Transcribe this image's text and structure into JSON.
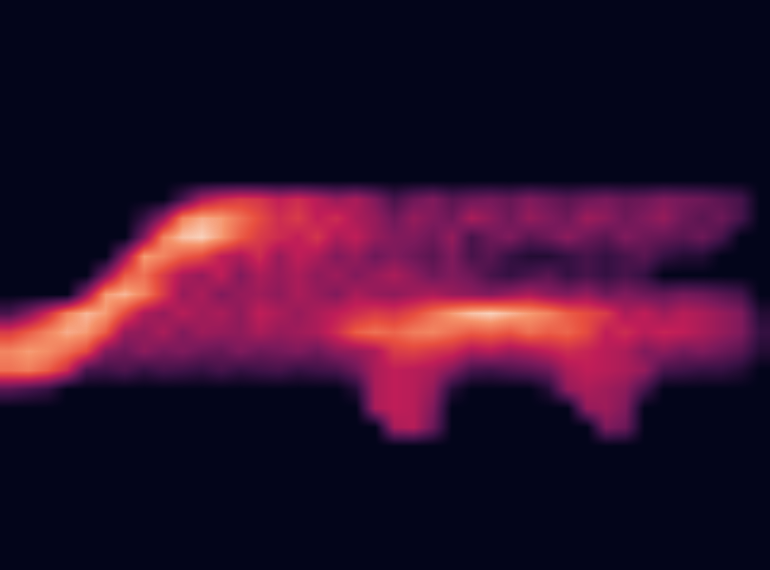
{
  "chart_data": {
    "type": "heatmap",
    "tick_labels": false,
    "zlim": [
      0,
      100
    ],
    "cells": [
      [
        0,
        0,
        0,
        0,
        0,
        0,
        0,
        0,
        0,
        0,
        0,
        0,
        0,
        0,
        0,
        0,
        0,
        0,
        0,
        0,
        0,
        0,
        0,
        0,
        0,
        0,
        0,
        0,
        0,
        0,
        0,
        0,
        0,
        0,
        0,
        0,
        0,
        0,
        0,
        0
      ],
      [
        0,
        0,
        0,
        0,
        0,
        0,
        0,
        0,
        0,
        0,
        0,
        0,
        0,
        0,
        0,
        0,
        0,
        0,
        0,
        0,
        0,
        0,
        0,
        0,
        0,
        0,
        0,
        0,
        0,
        0,
        0,
        0,
        0,
        0,
        0,
        0,
        0,
        0,
        0,
        0
      ],
      [
        0,
        0,
        0,
        0,
        0,
        0,
        0,
        0,
        0,
        0,
        0,
        0,
        0,
        0,
        0,
        0,
        0,
        0,
        0,
        0,
        0,
        0,
        0,
        0,
        0,
        0,
        0,
        0,
        0,
        0,
        0,
        0,
        0,
        0,
        0,
        0,
        0,
        0,
        0,
        0
      ],
      [
        0,
        0,
        0,
        0,
        0,
        0,
        0,
        0,
        0,
        0,
        0,
        0,
        0,
        0,
        0,
        0,
        0,
        0,
        0,
        0,
        0,
        0,
        0,
        0,
        0,
        0,
        0,
        0,
        0,
        0,
        0,
        0,
        0,
        0,
        0,
        0,
        0,
        0,
        0,
        0
      ],
      [
        0,
        0,
        0,
        0,
        0,
        0,
        0,
        0,
        0,
        0,
        0,
        0,
        0,
        0,
        0,
        0,
        0,
        0,
        0,
        0,
        0,
        0,
        0,
        0,
        0,
        0,
        0,
        0,
        0,
        0,
        0,
        0,
        0,
        0,
        0,
        0,
        0,
        0,
        0,
        0
      ],
      [
        0,
        0,
        0,
        0,
        0,
        0,
        0,
        0,
        0,
        0,
        0,
        0,
        0,
        0,
        0,
        0,
        0,
        0,
        0,
        0,
        0,
        0,
        0,
        0,
        0,
        0,
        0,
        0,
        0,
        0,
        0,
        0,
        0,
        0,
        0,
        0,
        0,
        0,
        0,
        0
      ],
      [
        0,
        0,
        0,
        0,
        0,
        0,
        0,
        0,
        0,
        0,
        0,
        0,
        0,
        0,
        0,
        0,
        0,
        0,
        0,
        0,
        0,
        0,
        0,
        0,
        0,
        0,
        0,
        0,
        0,
        0,
        0,
        0,
        0,
        0,
        0,
        0,
        0,
        0,
        0,
        0
      ],
      [
        0,
        0,
        0,
        0,
        0,
        0,
        0,
        0,
        0,
        0,
        0,
        0,
        0,
        0,
        0,
        0,
        0,
        0,
        0,
        0,
        0,
        0,
        0,
        0,
        0,
        0,
        0,
        0,
        0,
        0,
        0,
        0,
        0,
        0,
        0,
        0,
        0,
        0,
        0,
        0
      ],
      [
        0,
        0,
        0,
        0,
        0,
        0,
        0,
        0,
        0,
        0,
        0,
        0,
        0,
        0,
        0,
        0,
        0,
        0,
        0,
        0,
        0,
        0,
        0,
        0,
        0,
        0,
        0,
        0,
        0,
        0,
        0,
        0,
        0,
        0,
        0,
        0,
        0,
        0,
        0,
        0
      ],
      [
        0,
        0,
        0,
        0,
        0,
        0,
        0,
        0,
        0,
        0,
        0,
        0,
        0,
        0,
        0,
        0,
        0,
        0,
        0,
        0,
        0,
        0,
        0,
        0,
        0,
        0,
        0,
        0,
        0,
        0,
        0,
        0,
        0,
        0,
        0,
        0,
        0,
        0,
        0,
        0
      ],
      [
        0,
        0,
        0,
        0,
        0,
        0,
        0,
        0,
        0,
        20,
        45,
        55,
        60,
        58,
        50,
        55,
        48,
        40,
        45,
        35,
        20,
        30,
        35,
        25,
        30,
        32,
        28,
        35,
        30,
        25,
        30,
        33,
        28,
        30,
        35,
        32,
        30,
        25,
        20,
        0
      ],
      [
        0,
        0,
        0,
        0,
        0,
        0,
        0,
        15,
        40,
        80,
        88,
        85,
        75,
        65,
        55,
        60,
        50,
        55,
        45,
        40,
        30,
        40,
        35,
        30,
        45,
        38,
        30,
        40,
        35,
        30,
        42,
        38,
        30,
        35,
        40,
        30,
        25,
        30,
        20,
        0
      ],
      [
        0,
        0,
        0,
        0,
        0,
        0,
        0,
        35,
        80,
        92,
        95,
        85,
        70,
        60,
        55,
        50,
        58,
        45,
        50,
        40,
        35,
        35,
        30,
        40,
        20,
        30,
        35,
        25,
        30,
        38,
        30,
        25,
        35,
        30,
        28,
        25,
        30,
        20,
        0,
        0
      ],
      [
        0,
        0,
        0,
        0,
        0,
        0,
        40,
        85,
        80,
        70,
        65,
        50,
        45,
        55,
        40,
        50,
        45,
        35,
        40,
        30,
        35,
        30,
        25,
        35,
        20,
        25,
        15,
        10,
        10,
        15,
        20,
        15,
        20,
        25,
        15,
        10,
        10,
        0,
        0,
        0
      ],
      [
        0,
        0,
        0,
        0,
        0,
        35,
        70,
        75,
        60,
        45,
        40,
        50,
        35,
        45,
        40,
        45,
        38,
        42,
        35,
        40,
        45,
        38,
        30,
        35,
        30,
        20,
        15,
        20,
        25,
        15,
        20,
        15,
        20,
        15,
        0,
        0,
        0,
        0,
        0,
        0
      ],
      [
        0,
        0,
        0,
        0,
        40,
        85,
        90,
        80,
        60,
        40,
        45,
        35,
        40,
        42,
        38,
        45,
        40,
        35,
        45,
        40,
        38,
        42,
        45,
        40,
        38,
        35,
        40,
        45,
        38,
        35,
        40,
        30,
        35,
        30,
        28,
        32,
        30,
        25,
        20,
        0
      ],
      [
        20,
        35,
        55,
        80,
        90,
        85,
        65,
        45,
        40,
        48,
        42,
        45,
        38,
        50,
        45,
        40,
        45,
        50,
        55,
        60,
        58,
        65,
        75,
        85,
        92,
        95,
        90,
        85,
        80,
        70,
        65,
        60,
        45,
        50,
        42,
        48,
        45,
        40,
        35,
        10
      ],
      [
        60,
        70,
        80,
        88,
        85,
        70,
        40,
        38,
        45,
        35,
        42,
        40,
        38,
        45,
        40,
        42,
        45,
        55,
        70,
        75,
        72,
        78,
        80,
        75,
        70,
        72,
        68,
        75,
        70,
        72,
        65,
        50,
        55,
        48,
        52,
        50,
        45,
        40,
        35,
        15
      ],
      [
        80,
        85,
        82,
        75,
        65,
        35,
        30,
        38,
        32,
        35,
        30,
        28,
        35,
        30,
        32,
        35,
        30,
        38,
        40,
        45,
        60,
        62,
        58,
        55,
        45,
        48,
        42,
        45,
        50,
        55,
        52,
        48,
        45,
        35,
        38,
        32,
        35,
        30,
        25,
        10
      ],
      [
        75,
        78,
        70,
        55,
        20,
        18,
        22,
        15,
        20,
        18,
        15,
        20,
        15,
        18,
        20,
        15,
        18,
        20,
        30,
        45,
        50,
        48,
        45,
        35,
        20,
        18,
        22,
        25,
        30,
        45,
        50,
        48,
        45,
        40,
        20,
        18,
        15,
        15,
        10,
        0
      ],
      [
        25,
        20,
        15,
        0,
        0,
        0,
        0,
        0,
        0,
        0,
        0,
        0,
        0,
        0,
        0,
        0,
        0,
        0,
        10,
        45,
        50,
        48,
        40,
        10,
        0,
        0,
        0,
        0,
        10,
        40,
        45,
        42,
        38,
        20,
        0,
        0,
        0,
        0,
        0,
        0
      ],
      [
        0,
        0,
        0,
        0,
        0,
        0,
        0,
        0,
        0,
        0,
        0,
        0,
        0,
        0,
        0,
        0,
        0,
        0,
        0,
        45,
        50,
        48,
        35,
        0,
        0,
        0,
        0,
        0,
        0,
        0,
        40,
        42,
        35,
        0,
        0,
        0,
        0,
        0,
        0,
        0
      ],
      [
        0,
        0,
        0,
        0,
        0,
        0,
        0,
        0,
        0,
        0,
        0,
        0,
        0,
        0,
        0,
        0,
        0,
        0,
        0,
        0,
        45,
        48,
        30,
        0,
        0,
        0,
        0,
        0,
        0,
        0,
        0,
        35,
        30,
        0,
        0,
        0,
        0,
        0,
        0,
        0
      ],
      [
        0,
        0,
        0,
        0,
        0,
        0,
        0,
        0,
        0,
        0,
        0,
        0,
        0,
        0,
        0,
        0,
        0,
        0,
        0,
        0,
        0,
        0,
        0,
        0,
        0,
        0,
        0,
        0,
        0,
        0,
        0,
        0,
        0,
        0,
        0,
        0,
        0,
        0,
        0,
        0
      ],
      [
        0,
        0,
        0,
        0,
        0,
        0,
        0,
        0,
        0,
        0,
        0,
        0,
        0,
        0,
        0,
        0,
        0,
        0,
        0,
        0,
        0,
        0,
        0,
        0,
        0,
        0,
        0,
        0,
        0,
        0,
        0,
        0,
        0,
        0,
        0,
        0,
        0,
        0,
        0,
        0
      ],
      [
        0,
        0,
        0,
        0,
        0,
        0,
        0,
        0,
        0,
        0,
        0,
        0,
        0,
        0,
        0,
        0,
        0,
        0,
        0,
        0,
        0,
        0,
        0,
        0,
        0,
        0,
        0,
        0,
        0,
        0,
        0,
        0,
        0,
        0,
        0,
        0,
        0,
        0,
        0,
        0
      ],
      [
        0,
        0,
        0,
        0,
        0,
        0,
        0,
        0,
        0,
        0,
        0,
        0,
        0,
        0,
        0,
        0,
        0,
        0,
        0,
        0,
        0,
        0,
        0,
        0,
        0,
        0,
        0,
        0,
        0,
        0,
        0,
        0,
        0,
        0,
        0,
        0,
        0,
        0,
        0,
        0
      ],
      [
        0,
        0,
        0,
        0,
        0,
        0,
        0,
        0,
        0,
        0,
        0,
        0,
        0,
        0,
        0,
        0,
        0,
        0,
        0,
        0,
        0,
        0,
        0,
        0,
        0,
        0,
        0,
        0,
        0,
        0,
        0,
        0,
        0,
        0,
        0,
        0,
        0,
        0,
        0,
        0
      ],
      [
        0,
        0,
        0,
        0,
        0,
        0,
        0,
        0,
        0,
        0,
        0,
        0,
        0,
        0,
        0,
        0,
        0,
        0,
        0,
        0,
        0,
        0,
        0,
        0,
        0,
        0,
        0,
        0,
        0,
        0,
        0,
        0,
        0,
        0,
        0,
        0,
        0,
        0,
        0,
        0
      ],
      [
        0,
        0,
        0,
        0,
        0,
        0,
        0,
        0,
        0,
        0,
        0,
        0,
        0,
        0,
        0,
        0,
        0,
        0,
        0,
        0,
        0,
        0,
        0,
        0,
        0,
        0,
        0,
        0,
        0,
        0,
        0,
        0,
        0,
        0,
        0,
        0,
        0,
        0,
        0,
        0
      ]
    ]
  }
}
